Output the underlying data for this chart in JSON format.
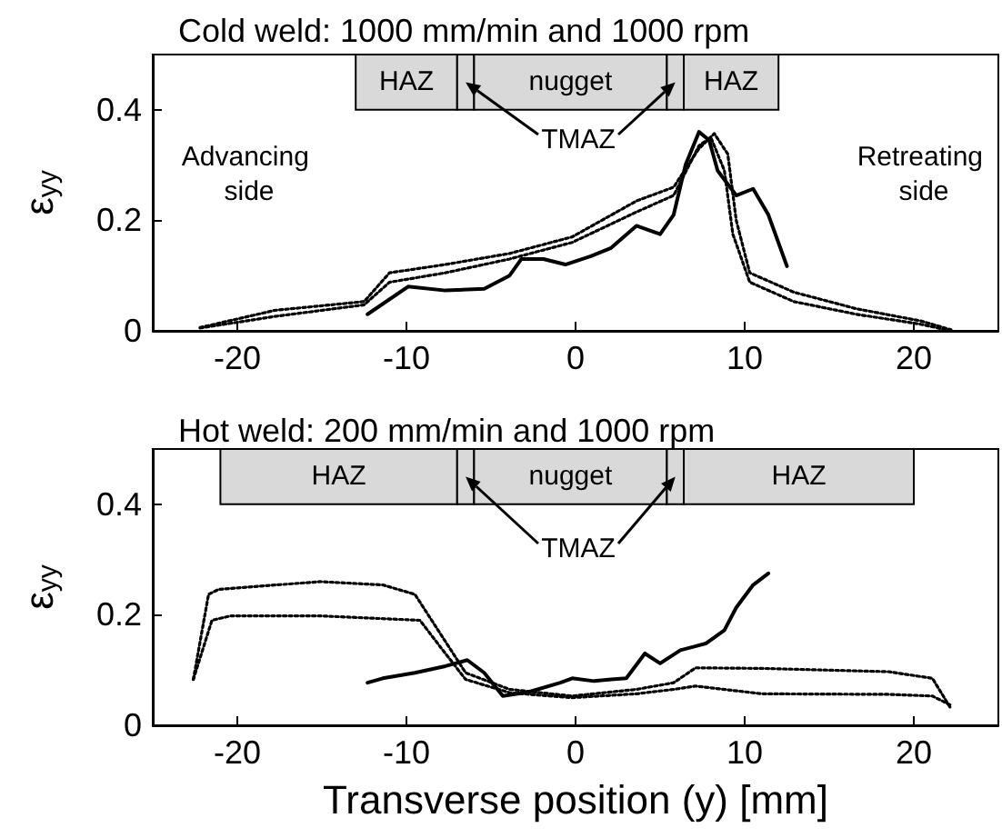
{
  "chart_data": [
    {
      "type": "line",
      "title": "Cold weld: 1000 mm/min and 1000 rpm",
      "ylabel": "ε$_{yy}$",
      "xlim": [
        -25,
        25
      ],
      "xticks": [
        -20,
        -10,
        0,
        10,
        20
      ],
      "ylim": [
        0,
        0.5
      ],
      "yticks": [
        0,
        0.2,
        0.4
      ],
      "grid": false,
      "series": [
        {
          "color": "#000000",
          "line_style": "solid",
          "x": [
            -12.3,
            -9.9,
            -7.7,
            -5.4,
            -3.9,
            -3.2,
            -1.9,
            -0.6,
            0.9,
            2.1,
            3.6,
            5.0,
            5.8,
            6.5,
            7.3,
            7.9,
            8.4,
            9.5,
            10.5,
            11.4,
            12.5
          ],
          "values": [
            0.03,
            0.08,
            0.073,
            0.076,
            0.1,
            0.13,
            0.13,
            0.12,
            0.135,
            0.15,
            0.19,
            0.175,
            0.21,
            0.3,
            0.36,
            0.345,
            0.29,
            0.245,
            0.257,
            0.21,
            0.117
          ]
        },
        {
          "color": "#000000",
          "line_style": "dotted",
          "x": [
            -22.2,
            -17.8,
            -12.5,
            -11.0,
            -7.7,
            -3.9,
            -0.2,
            3.6,
            5.8,
            7.3,
            8.2,
            9.0,
            9.5,
            10.3,
            12.9,
            16.6,
            20.4,
            22.2
          ],
          "values": [
            0.006,
            0.037,
            0.053,
            0.105,
            0.12,
            0.14,
            0.17,
            0.235,
            0.26,
            0.33,
            0.357,
            0.32,
            0.2,
            0.105,
            0.07,
            0.04,
            0.018,
            0.002
          ]
        },
        {
          "color": "#000000",
          "line_style": "dotted",
          "x": [
            -22.2,
            -17.8,
            -12.5,
            -11.0,
            -7.7,
            -3.9,
            -0.2,
            3.6,
            5.8,
            7.3,
            8.0,
            8.8,
            9.3,
            10.3,
            12.9,
            16.6,
            20.4,
            22.2
          ],
          "values": [
            0.005,
            0.026,
            0.047,
            0.088,
            0.105,
            0.13,
            0.16,
            0.215,
            0.245,
            0.335,
            0.35,
            0.29,
            0.175,
            0.088,
            0.053,
            0.03,
            0.012,
            0.0
          ]
        }
      ],
      "bands": [
        {
          "axis": "x",
          "from": -13.0,
          "to": -7.0,
          "label": "HAZ",
          "color": "#d9d9d9"
        },
        {
          "axis": "x",
          "from": -7.0,
          "to": -6.0,
          "label": null,
          "color": "#d9d9d9"
        },
        {
          "axis": "x",
          "from": -6.0,
          "to": 5.4,
          "label": "nugget",
          "color": "#d9d9d9"
        },
        {
          "axis": "x",
          "from": 5.4,
          "to": 6.4,
          "label": null,
          "color": "#d9d9d9"
        },
        {
          "axis": "x",
          "from": 6.4,
          "to": 12.0,
          "label": "HAZ",
          "color": "#d9d9d9"
        }
      ],
      "annotations": [
        "TMAZ",
        "Advancing side",
        "Retreating side"
      ]
    },
    {
      "type": "line",
      "title": "Hot weld: 200 mm/min and 1000 rpm",
      "xlabel": "Transverse position (y) [mm]",
      "ylabel": "ε$_{yy}$",
      "xlim": [
        -25,
        25
      ],
      "xticks": [
        -20,
        -10,
        0,
        10,
        20
      ],
      "ylim": [
        0,
        0.5
      ],
      "yticks": [
        0,
        0.2,
        0.4
      ],
      "grid": false,
      "series": [
        {
          "color": "#000000",
          "line_style": "solid",
          "x": [
            -12.3,
            -11.4,
            -9.5,
            -7.7,
            -6.4,
            -5.4,
            -4.3,
            -2.8,
            -0.9,
            -0.2,
            1.1,
            2.1,
            3.0,
            4.1,
            5.0,
            6.2,
            7.7,
            8.8,
            9.5,
            10.5,
            11.4
          ],
          "values": [
            0.077,
            0.085,
            0.095,
            0.107,
            0.118,
            0.095,
            0.053,
            0.06,
            0.077,
            0.085,
            0.08,
            0.083,
            0.085,
            0.13,
            0.112,
            0.136,
            0.148,
            0.172,
            0.213,
            0.254,
            0.275
          ]
        },
        {
          "color": "#000000",
          "line_style": "dotted",
          "x": [
            -22.6,
            -21.7,
            -21.1,
            -15.1,
            -11.4,
            -9.5,
            -8.0,
            -6.5,
            -3.9,
            -0.2,
            3.6,
            5.8,
            7.1,
            11.0,
            18.5,
            21.1,
            22.2
          ],
          "values": [
            0.083,
            0.237,
            0.246,
            0.26,
            0.254,
            0.237,
            0.166,
            0.095,
            0.065,
            0.053,
            0.065,
            0.077,
            0.104,
            0.103,
            0.097,
            0.085,
            0.03
          ]
        },
        {
          "color": "#000000",
          "line_style": "dotted",
          "x": [
            -22.6,
            -21.5,
            -20.4,
            -15.1,
            -9.2,
            -8.0,
            -6.5,
            -3.9,
            -0.2,
            3.6,
            5.8,
            7.1,
            11.0,
            18.5,
            21.1,
            22.2
          ],
          "values": [
            0.083,
            0.19,
            0.198,
            0.198,
            0.19,
            0.142,
            0.083,
            0.059,
            0.05,
            0.057,
            0.065,
            0.071,
            0.057,
            0.056,
            0.053,
            0.036
          ]
        }
      ],
      "bands": [
        {
          "axis": "x",
          "from": -21.0,
          "to": -7.0,
          "label": "HAZ",
          "color": "#d9d9d9"
        },
        {
          "axis": "x",
          "from": -7.0,
          "to": -6.0,
          "label": null,
          "color": "#d9d9d9"
        },
        {
          "axis": "x",
          "from": -6.0,
          "to": 5.4,
          "label": "nugget",
          "color": "#d9d9d9"
        },
        {
          "axis": "x",
          "from": 5.4,
          "to": 6.4,
          "label": null,
          "color": "#d9d9d9"
        },
        {
          "axis": "x",
          "from": 6.4,
          "to": 20.0,
          "label": "HAZ",
          "color": "#d9d9d9"
        }
      ],
      "annotations": [
        "TMAZ"
      ]
    }
  ]
}
